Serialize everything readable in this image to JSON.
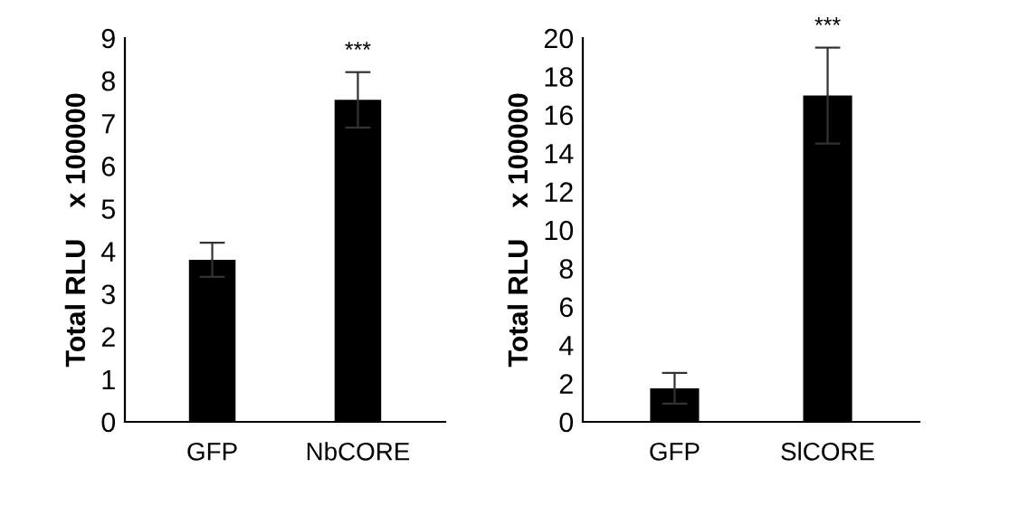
{
  "chart_data": [
    {
      "type": "bar",
      "ylabel": "Total RLU    x 100000",
      "categories": [
        "GFP",
        "NbCORE"
      ],
      "values": [
        3.8,
        7.55
      ],
      "errors": [
        0.4,
        0.65
      ],
      "color": "#000000",
      "ylim": [
        0,
        9
      ],
      "yticks": [
        0,
        1,
        2,
        3,
        4,
        5,
        6,
        7,
        8,
        9
      ],
      "grid": false,
      "legend": false,
      "annotations": [
        {
          "text": "***",
          "x": "NbCORE",
          "y": 8.2
        }
      ]
    },
    {
      "type": "bar",
      "ylabel": "Total RLU    x 100000",
      "categories": [
        "GFP",
        "SlCORE"
      ],
      "values": [
        1.75,
        17.0
      ],
      "errors": [
        0.8,
        2.5
      ],
      "color": "#000000",
      "ylim": [
        0,
        20
      ],
      "yticks": [
        0,
        2,
        4,
        6,
        8,
        10,
        12,
        14,
        16,
        18,
        20
      ],
      "grid": false,
      "legend": false,
      "annotations": [
        {
          "text": "***",
          "x": "SlCORE",
          "y": 19.5
        }
      ]
    }
  ]
}
